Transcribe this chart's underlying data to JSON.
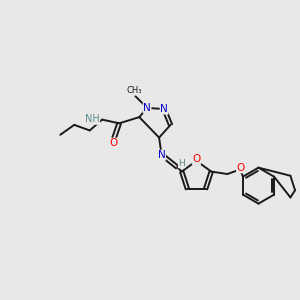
{
  "background_color": "#e8e8e8",
  "atom_colors": {
    "N": "#0000cc",
    "O": "#ff0000",
    "C": "#1a1a1a",
    "H": "#5a8a8a"
  },
  "bond_color": "#1a1a1a",
  "bond_width": 1.4,
  "figsize": [
    3.0,
    3.0
  ],
  "dpi": 100
}
